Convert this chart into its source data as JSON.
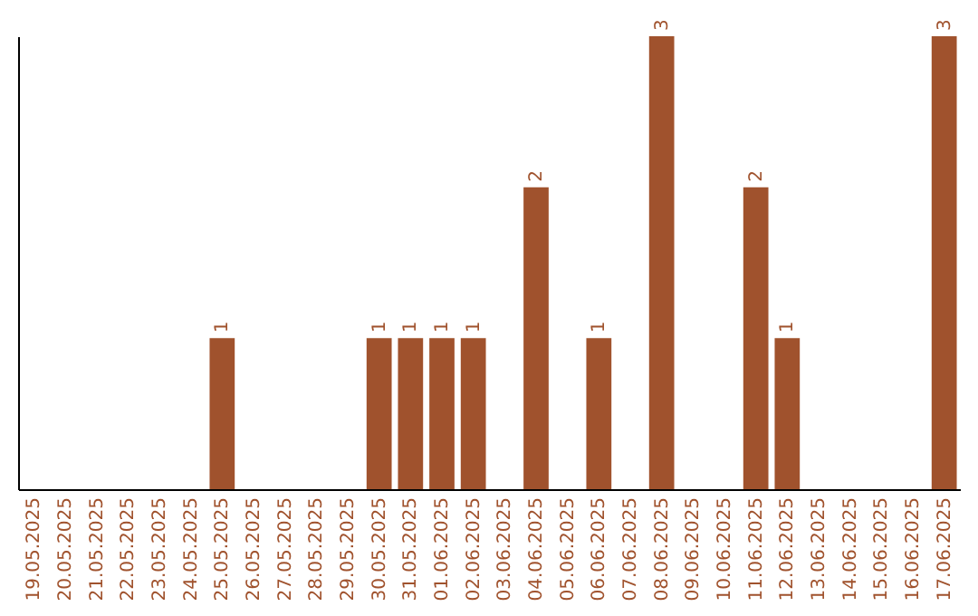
{
  "chart_data": {
    "type": "bar",
    "categories": [
      "19.05.2025",
      "20.05.2025",
      "21.05.2025",
      "22.05.2025",
      "23.05.2025",
      "24.05.2025",
      "25.05.2025",
      "26.05.2025",
      "27.05.2025",
      "28.05.2025",
      "29.05.2025",
      "30.05.2025",
      "31.05.2025",
      "01.06.2025",
      "02.06.2025",
      "03.06.2025",
      "04.06.2025",
      "05.06.2025",
      "06.06.2025",
      "07.06.2025",
      "08.06.2025",
      "09.06.2025",
      "10.06.2025",
      "11.06.2025",
      "12.06.2025",
      "13.06.2025",
      "14.06.2025",
      "15.06.2025",
      "16.06.2025",
      "17.06.2025"
    ],
    "values": [
      0,
      0,
      0,
      0,
      0,
      0,
      1,
      0,
      0,
      0,
      0,
      1,
      1,
      1,
      1,
      0,
      2,
      0,
      1,
      0,
      3,
      0,
      0,
      2,
      1,
      0,
      0,
      0,
      0,
      3
    ],
    "value_labels": [
      null,
      null,
      null,
      null,
      null,
      null,
      "1",
      null,
      null,
      null,
      null,
      "1",
      "1",
      "1",
      "1",
      null,
      "2",
      null,
      "1",
      null,
      "3",
      null,
      null,
      "2",
      "1",
      null,
      null,
      null,
      null,
      "3"
    ],
    "color": "#a0522d",
    "tick_labels": "x"
  }
}
